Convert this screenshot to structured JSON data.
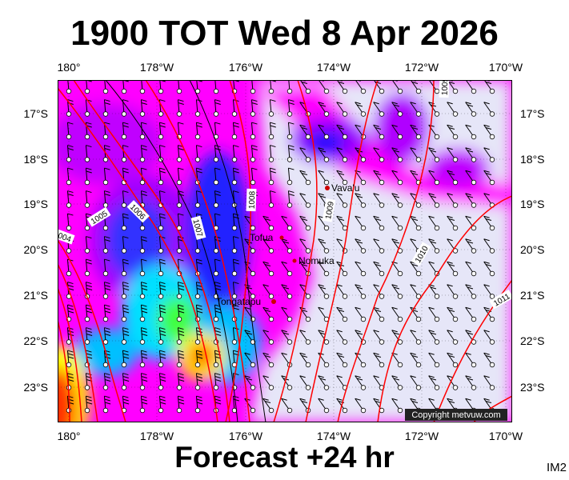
{
  "header": {
    "title": "1900 TOT Wed 8 Apr 2026"
  },
  "footer": {
    "forecast": "Forecast +24 hr",
    "product_code": "IM2"
  },
  "axes": {
    "longitude_labels": [
      "180°",
      "178°W",
      "176°W",
      "174°W",
      "172°W",
      "170°W"
    ],
    "latitude_labels": [
      "17°S",
      "18°S",
      "19°S",
      "20°S",
      "21°S",
      "22°S",
      "23°S"
    ]
  },
  "places": [
    {
      "name": "Vava'u"
    },
    {
      "name": "Tofua"
    },
    {
      "name": "Nomuka"
    },
    {
      "name": "Tongatapu"
    }
  ],
  "isobar_labels": [
    "1005",
    "1006",
    "1004",
    "1007",
    "1008",
    "1009",
    "1010",
    "1011",
    "1009"
  ],
  "copyright": "Copyright metvuw.com",
  "colors": {
    "background": "#ffffff",
    "light_lavender": "#e6e6f8",
    "magenta": "#ff00ff",
    "purple": "#a000ff",
    "blue": "#0000ff",
    "cyan": "#00e8ff",
    "green": "#00ff40",
    "yellow": "#ffff00",
    "orange": "#ff8000",
    "red": "#ff0000",
    "isobar_red": "#ff0000",
    "isobar_black": "#000000"
  }
}
